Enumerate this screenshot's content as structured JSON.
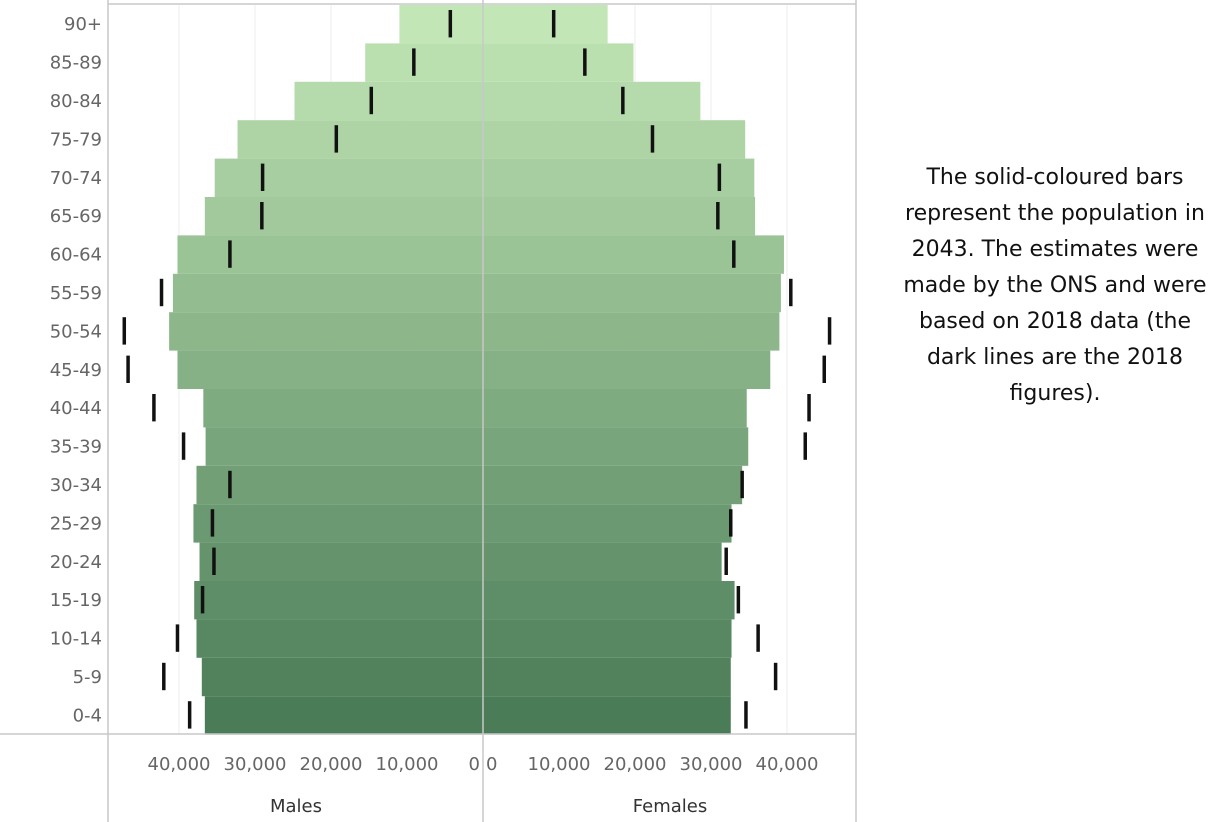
{
  "chart_data": {
    "type": "bar",
    "subtype": "population-pyramid",
    "categories": [
      "90+",
      "85-89",
      "80-84",
      "75-79",
      "70-74",
      "65-69",
      "60-64",
      "55-59",
      "50-54",
      "45-49",
      "40-44",
      "35-39",
      "30-34",
      "25-29",
      "20-24",
      "15-19",
      "10-14",
      "5-9",
      "0-4"
    ],
    "series": [
      {
        "name": "Males",
        "values_2043": [
          11000,
          15500,
          24800,
          32300,
          35300,
          36600,
          40200,
          40800,
          41300,
          40200,
          36800,
          36500,
          37700,
          38100,
          37300,
          38000,
          37700,
          37000,
          36600
        ],
        "values_2018": [
          4300,
          9100,
          14700,
          19300,
          29000,
          29100,
          33300,
          42300,
          47200,
          46700,
          43300,
          39400,
          33300,
          35600,
          35400,
          36900,
          40200,
          42000,
          38600
        ]
      },
      {
        "name": "Females",
        "values_2043": [
          16400,
          19800,
          28600,
          34500,
          35700,
          35800,
          39600,
          39200,
          39000,
          37800,
          34700,
          34900,
          34100,
          32700,
          31400,
          33100,
          32700,
          32600,
          32600
        ],
        "values_2018": [
          9300,
          13400,
          18400,
          22300,
          31100,
          30900,
          33000,
          40500,
          45600,
          44900,
          42900,
          42400,
          34100,
          32600,
          32000,
          33600,
          36200,
          38500,
          34600
        ]
      }
    ],
    "x_ticks": [
      "40,000",
      "30,000",
      "20,000",
      "10,000",
      "0",
      "0",
      "10,000",
      "20,000",
      "30,000",
      "40,000"
    ],
    "xlim": [
      0,
      46000
    ],
    "colors": {
      "top": "#c2e6b5",
      "bottom": "#4a7c57",
      "line_2018": "#111111",
      "axis": "#c8c8c8",
      "grid": "#eeeeee"
    }
  },
  "axis_titles": {
    "left": "Males",
    "right": "Females"
  },
  "annotation": "The solid-coloured bars represent the population in 2043. The estimates were made by the ONS and were based on 2018 data (the dark lines are the 2018 figures)."
}
